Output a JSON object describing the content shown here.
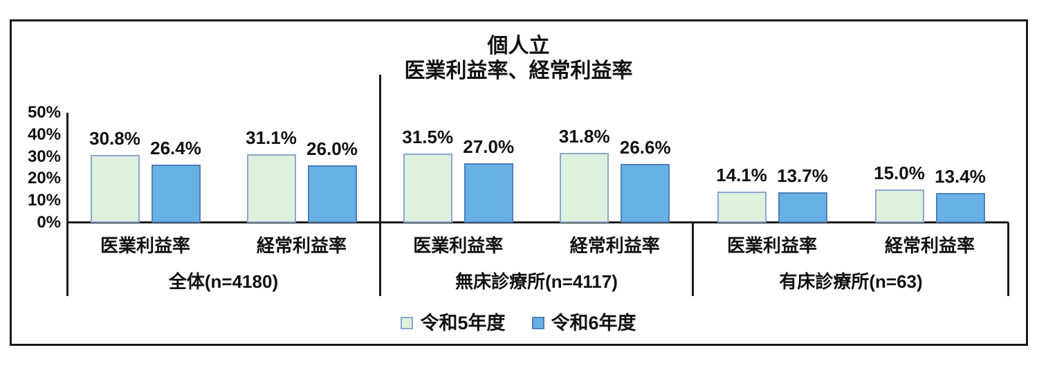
{
  "title": {
    "line1": "個人立",
    "line2": "医業利益率、経常利益率"
  },
  "legend": {
    "items": [
      {
        "label": "令和5年度"
      },
      {
        "label": "令和6年度"
      }
    ]
  },
  "chart_data": {
    "type": "bar",
    "title": "個人立",
    "subtitle": "医業利益率、経常利益率",
    "unit": "%",
    "ylim": [
      0,
      50
    ],
    "y_ticks": [
      "0%",
      "10%",
      "20%",
      "30%",
      "40%",
      "50%"
    ],
    "grid": false,
    "data_labels": true,
    "legend_position": "bottom",
    "series_names": [
      "令和5年度",
      "令和6年度"
    ],
    "series_colors": [
      {
        "fill": "#ddf1dc",
        "border": "#8ba6cf"
      },
      {
        "fill": "#68b1e4",
        "border": "#4e7fbb"
      }
    ],
    "groups": [
      {
        "label": "全体(n=4180)",
        "categories": [
          "医業利益率",
          "経常利益率"
        ],
        "series": [
          {
            "name": "令和5年度",
            "values": [
              30.8,
              31.1
            ]
          },
          {
            "name": "令和6年度",
            "values": [
              26.4,
              26.0
            ]
          }
        ]
      },
      {
        "label": "無床診療所(n=4117)",
        "categories": [
          "医業利益率",
          "経常利益率"
        ],
        "series": [
          {
            "name": "令和5年度",
            "values": [
              31.5,
              31.8
            ]
          },
          {
            "name": "令和6年度",
            "values": [
              27.0,
              26.6
            ]
          }
        ]
      },
      {
        "label": "有床診療所(n=63)",
        "categories": [
          "医業利益率",
          "経常利益率"
        ],
        "series": [
          {
            "name": "令和5年度",
            "values": [
              14.1,
              15.0
            ]
          },
          {
            "name": "令和6年度",
            "values": [
              13.7,
              13.4
            ]
          }
        ]
      }
    ]
  }
}
